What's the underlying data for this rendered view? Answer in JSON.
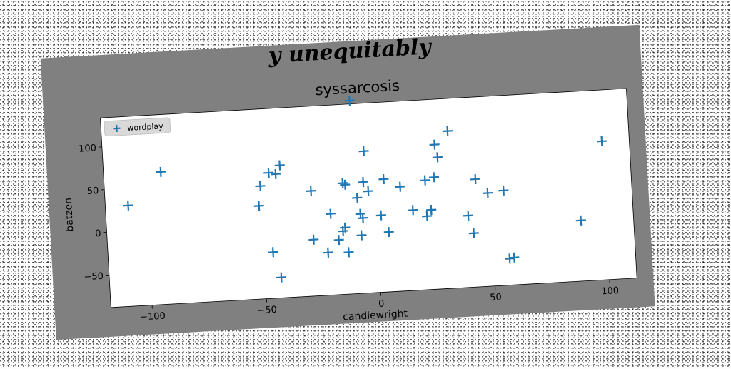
{
  "suptitle": "y unequitably",
  "chart_data": {
    "type": "scatter",
    "title": "syssarcosis",
    "xlabel": "candlewright",
    "ylabel": "batzen",
    "xlim": [
      -118,
      112
    ],
    "ylim": [
      -88,
      134
    ],
    "xticks": [
      -100,
      -50,
      0,
      50,
      100
    ],
    "yticks": [
      -50,
      0,
      50,
      100
    ],
    "xtick_labels": [
      "−100",
      "−50",
      "0",
      "50",
      "100"
    ],
    "ytick_labels": [
      "−50",
      "0",
      "50",
      "100"
    ],
    "legend_position": "upper-left",
    "marker": "+",
    "colors": {
      "series": "#1f77b4",
      "figure_bg": "#808080",
      "axes_bg": "#ffffff",
      "legend_bg": "#d9d9d9"
    },
    "series": [
      {
        "name": "wordplay",
        "points": [
          [
            -108,
            30
          ],
          [
            -93,
            67
          ],
          [
            -50,
            44
          ],
          [
            -51,
            21
          ],
          [
            -46,
            59
          ],
          [
            -43,
            57
          ],
          [
            -41,
            67
          ],
          [
            -46,
            -34
          ],
          [
            -43,
            -64
          ],
          [
            -28,
            35
          ],
          [
            -28,
            -22
          ],
          [
            -22,
            -38
          ],
          [
            -20,
            7
          ],
          [
            -17,
            -24
          ],
          [
            -15,
            -14
          ],
          [
            -14,
            -10
          ],
          [
            -13,
            -39
          ],
          [
            -14,
            42
          ],
          [
            -13,
            40
          ],
          [
            -8,
            24
          ],
          [
            -9,
            138
          ],
          [
            -4,
            78
          ],
          [
            -5,
            42
          ],
          [
            -3,
            31
          ],
          [
            -7,
            5
          ],
          [
            -6,
            0
          ],
          [
            -7,
            -20
          ],
          [
            2,
            2
          ],
          [
            4,
            44
          ],
          [
            5,
            -18
          ],
          [
            11,
            34
          ],
          [
            16,
            6
          ],
          [
            22,
            40
          ],
          [
            24,
            5
          ],
          [
            22,
            -2
          ],
          [
            26,
            43
          ],
          [
            24,
            5
          ],
          [
            27,
            81
          ],
          [
            28,
            66
          ],
          [
            33,
            96
          ],
          [
            40,
            -4
          ],
          [
            42,
            -25
          ],
          [
            44,
            38
          ],
          [
            49,
            21
          ],
          [
            56,
            23
          ],
          [
            57,
            -57
          ],
          [
            59,
            -56
          ],
          [
            89,
            -17
          ],
          [
            100,
            74
          ]
        ]
      }
    ]
  }
}
